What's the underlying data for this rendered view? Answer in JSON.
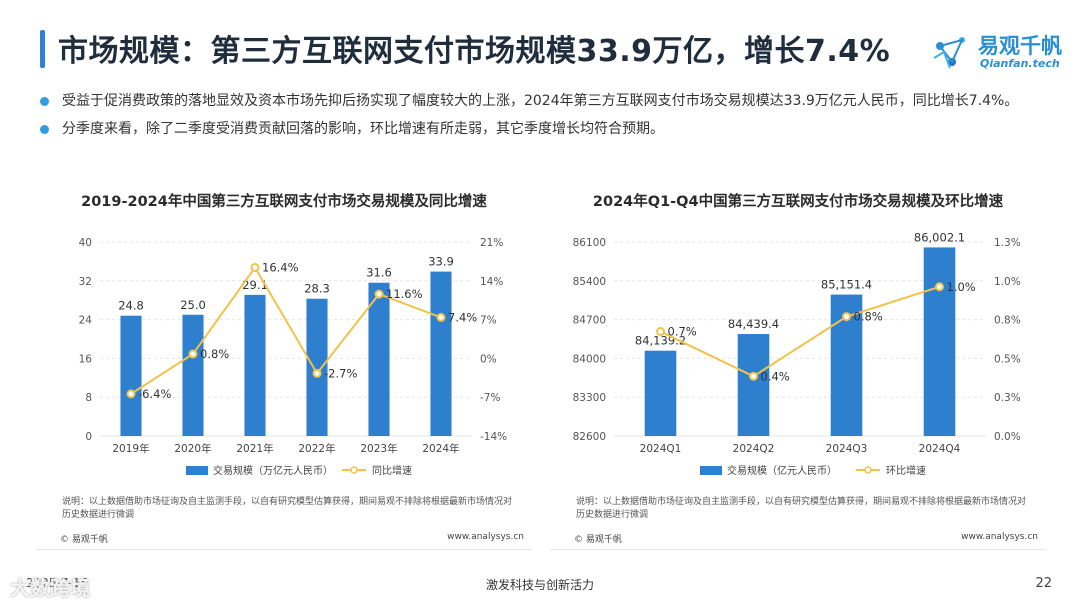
{
  "header": {
    "title": "市场规模：第三方互联网支付市场规模33.9万亿，增长7.4%",
    "logo_name": "易观千帆",
    "logo_sub": "Qianfan.tech"
  },
  "bullets": [
    "受益于促消费政策的落地显效及资本市场先抑后扬实现了幅度较大的上涨，2024年第三方互联网支付市场交易规模达33.9万亿元人民币，同比增长7.4%。",
    "分季度来看，除了二季度受消费贡献回落的影响，环比增速有所走弱，其它季度增长均符合预期。"
  ],
  "colors": {
    "bar": "#2f7fcf",
    "line": "#f2c24a",
    "accent": "#2f9ee0"
  },
  "panels": [
    {
      "note": "说明：以上数据借助市场征询及自主监测手段，以自有研究模型估算获得，期间易观不排除将根据最新市场情况对历史数据进行微调",
      "copyright": "© 易观千帆",
      "website": "www.analysys.cn"
    },
    {
      "note": "说明：以上数据借助市场征询及自主监测手段，以自有研究模型估算获得，期间易观不排除将根据最新市场情况对历史数据进行微调",
      "copyright": "© 易观千帆",
      "website": "www.analysys.cn"
    }
  ],
  "chart_data": [
    {
      "type": "bar",
      "title": "2019-2024年中国第三方互联网支付市场交易规模及同比增速",
      "categories": [
        "2019年",
        "2020年",
        "2021年",
        "2022年",
        "2023年",
        "2024年"
      ],
      "series": [
        {
          "name": "交易规模（万亿元人民币）",
          "type": "bar",
          "axis": "left",
          "values": [
            24.8,
            25.0,
            29.1,
            28.3,
            31.6,
            33.9
          ],
          "labels": [
            "24.8",
            "25.0",
            "29.1",
            "28.3",
            "31.6",
            "33.9"
          ]
        },
        {
          "name": "同比增速",
          "type": "line",
          "axis": "right",
          "values": [
            -6.4,
            0.8,
            16.4,
            -2.7,
            11.6,
            7.4
          ],
          "labels": [
            "-6.4%",
            "0.8%",
            "16.4%",
            "-2.7%",
            "11.6%",
            "7.4%"
          ]
        }
      ],
      "ylim_left": [
        0,
        40
      ],
      "yticks_left": [
        "0",
        "8",
        "16",
        "24",
        "32",
        "40"
      ],
      "ylim_right": [
        -14,
        21
      ],
      "yticks_right": [
        "-14%",
        "-7%",
        "0%",
        "7%",
        "14%",
        "21%"
      ],
      "legend": "bottom"
    },
    {
      "type": "bar",
      "title": "2024年Q1-Q4中国第三方互联网支付市场交易规模及环比增速",
      "categories": [
        "2024Q1",
        "2024Q2",
        "2024Q3",
        "2024Q4"
      ],
      "series": [
        {
          "name": "交易规模（亿元人民币）",
          "type": "bar",
          "axis": "left",
          "values": [
            84139.2,
            84439.4,
            85151.4,
            86002.1
          ],
          "labels": [
            "84,139.2",
            "84,439.4",
            "85,151.4",
            "86,002.1"
          ]
        },
        {
          "name": "环比增速",
          "type": "line",
          "axis": "right",
          "values": [
            0.7,
            0.4,
            0.8,
            1.0
          ],
          "labels": [
            "0.7%",
            "0.4%",
            "0.8%",
            "1.0%"
          ]
        }
      ],
      "ylim_left": [
        82600,
        86100
      ],
      "yticks_left": [
        "82600",
        "83300",
        "84000",
        "84700",
        "85400",
        "86100"
      ],
      "ylim_right": [
        0,
        1.3
      ],
      "yticks_right": [
        "0.0%",
        "0.3%",
        "0.5%",
        "0.8%",
        "1.0%",
        "1.3%"
      ],
      "legend": "bottom"
    }
  ],
  "footer": {
    "date": "2025-7-15",
    "slogan": "激发科技与创新活力",
    "page": "22",
    "watermark": "大数跨境"
  }
}
